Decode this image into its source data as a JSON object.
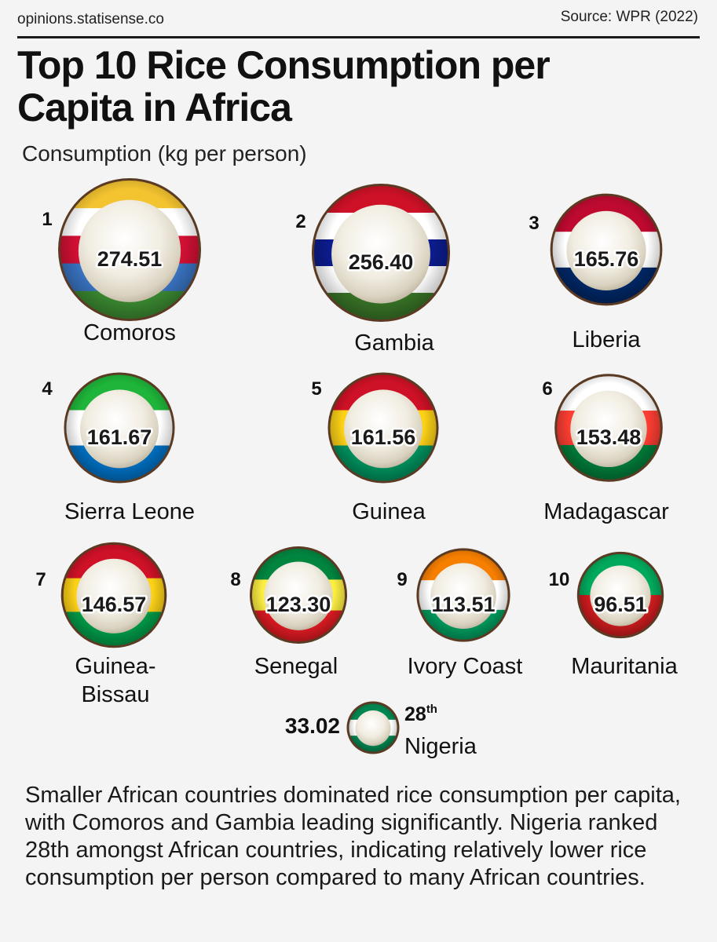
{
  "header": {
    "site": "opinions.statisense.co",
    "source": "Source:  WPR (2022)"
  },
  "title": "Top 10 Rice Consumption per Capita in Africa",
  "subtitle": "Consumption (kg per person)",
  "footer": "Smaller African countries dominated rice consumption per capita, with Comoros and Gambia leading significantly. Nigeria ranked 28th amongst African countries, indicating relatively lower rice consumption per person compared to many African countries.",
  "chart_data": {
    "type": "bubble",
    "title": "Top 10 Rice Consumption per Capita in Africa",
    "unit": "kg per person",
    "items": [
      {
        "rank": "1",
        "country": "Comoros",
        "value": "274.51",
        "flag": [
          "#f4c430",
          "#ffffff",
          "#d21034",
          "#3a75c4",
          "#3d8e33"
        ]
      },
      {
        "rank": "2",
        "country": "Gambia",
        "value": "256.40",
        "flag": [
          "#ce1126",
          "#ffffff",
          "#0c1c8c",
          "#ffffff",
          "#3a7728"
        ]
      },
      {
        "rank": "3",
        "country": "Liberia",
        "value": "165.76",
        "flag": [
          "#bf0a30",
          "#ffffff",
          "#002868"
        ]
      },
      {
        "rank": "4",
        "country": "Sierra Leone",
        "value": "161.67",
        "flag": [
          "#1eb53a",
          "#ffffff",
          "#0072c6"
        ]
      },
      {
        "rank": "5",
        "country": "Guinea",
        "value": "161.56",
        "flag": [
          "#ce1126",
          "#fcd116",
          "#009460"
        ]
      },
      {
        "rank": "6",
        "country": "Madagascar",
        "value": "153.48",
        "flag": [
          "#ffffff",
          "#fc3d32",
          "#007e3a"
        ]
      },
      {
        "rank": "7",
        "country": "Guinea-Bissau",
        "value": "146.57",
        "flag": [
          "#ce1126",
          "#fcd116",
          "#009e49"
        ]
      },
      {
        "rank": "8",
        "country": "Senegal",
        "value": "123.30",
        "flag": [
          "#00853f",
          "#fdef42",
          "#e31b23"
        ]
      },
      {
        "rank": "9",
        "country": "Ivory Coast",
        "value": "113.51",
        "flag": [
          "#f77f00",
          "#ffffff",
          "#009e60"
        ]
      },
      {
        "rank": "10",
        "country": "Mauritania",
        "value": "96.51",
        "flag": [
          "#00a95c",
          "#d01c1f"
        ]
      },
      {
        "rank": "28",
        "rank_suffix": "th",
        "country": "Nigeria",
        "value": "33.02",
        "flag": [
          "#008751",
          "#ffffff",
          "#008751"
        ]
      }
    ]
  }
}
